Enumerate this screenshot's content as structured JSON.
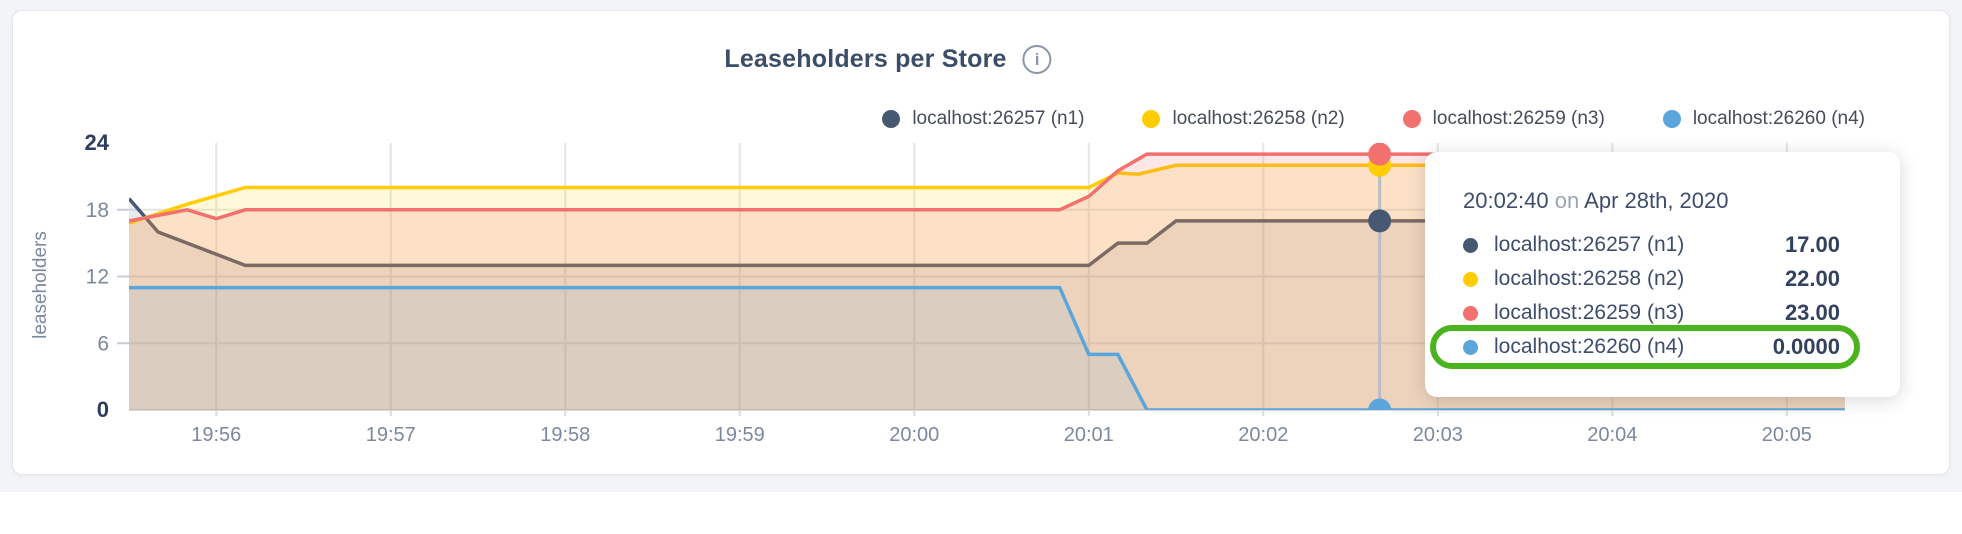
{
  "page": {
    "background": "#f3f4f8",
    "card_background": "#ffffff"
  },
  "header": {
    "title": "Leaseholders per Store",
    "info_icon": "i"
  },
  "legend": [
    {
      "label": "localhost:26257 (n1)",
      "color": "#475872"
    },
    {
      "label": "localhost:26258 (n2)",
      "color": "#ffcd02"
    },
    {
      "label": "localhost:26259 (n3)",
      "color": "#f2706e"
    },
    {
      "label": "localhost:26260 (n4)",
      "color": "#5aa6dc"
    }
  ],
  "chart_data": {
    "type": "area",
    "title": "Leaseholders per Store",
    "xlabel": "",
    "ylabel": "leaseholders",
    "ylim": [
      0,
      24
    ],
    "y_ticks": [
      0,
      6,
      12,
      18,
      24
    ],
    "y_ticks_bold": [
      0,
      24
    ],
    "grid": true,
    "legend_position": "top-right",
    "x_range": [
      "19:55:30",
      "20:05:20"
    ],
    "x_ticks": [
      "19:56",
      "19:57",
      "19:58",
      "19:59",
      "20:00",
      "20:01",
      "20:02",
      "20:03",
      "20:04",
      "20:05"
    ],
    "series": [
      {
        "name": "localhost:26257 (n1)",
        "color": "#475872",
        "fill_opacity": 0.12,
        "points": [
          [
            "19:55:30",
            19
          ],
          [
            "19:55:40",
            16
          ],
          [
            "19:55:50",
            15
          ],
          [
            "19:56:00",
            14
          ],
          [
            "19:56:10",
            13
          ],
          [
            "20:01:00",
            13
          ],
          [
            "20:01:10",
            15
          ],
          [
            "20:01:20",
            15
          ],
          [
            "20:01:30",
            17
          ],
          [
            "20:05:20",
            17
          ]
        ]
      },
      {
        "name": "localhost:26258 (n2)",
        "color": "#ffcd02",
        "fill_opacity": 0.15,
        "points": [
          [
            "19:55:30",
            16.8
          ],
          [
            "19:55:50",
            18.5
          ],
          [
            "19:56:10",
            20
          ],
          [
            "20:01:00",
            20
          ],
          [
            "20:01:10",
            21.3
          ],
          [
            "20:01:17",
            21.2
          ],
          [
            "20:01:30",
            22
          ],
          [
            "20:05:20",
            22
          ]
        ]
      },
      {
        "name": "localhost:26259 (n3)",
        "color": "#f2706e",
        "fill_opacity": 0.17,
        "points": [
          [
            "19:55:30",
            17
          ],
          [
            "19:55:50",
            18
          ],
          [
            "19:56:00",
            17.2
          ],
          [
            "19:56:10",
            18
          ],
          [
            "20:00:50",
            18
          ],
          [
            "20:01:00",
            19.2
          ],
          [
            "20:01:10",
            21.5
          ],
          [
            "20:01:20",
            23
          ],
          [
            "20:05:20",
            23
          ]
        ]
      },
      {
        "name": "localhost:26260 (n4)",
        "color": "#5aa6dc",
        "fill_opacity": 0.12,
        "points": [
          [
            "19:55:30",
            11
          ],
          [
            "20:00:50",
            11
          ],
          [
            "20:01:00",
            5
          ],
          [
            "20:01:10",
            5
          ],
          [
            "20:01:20",
            0
          ],
          [
            "20:05:20",
            0
          ]
        ]
      }
    ],
    "hover": {
      "time": "20:02:40",
      "values": [
        17,
        22,
        23,
        0
      ]
    }
  },
  "tooltip": {
    "time": "20:02:40",
    "conjunction": "on",
    "date": "Apr 28th, 2020",
    "rows": [
      {
        "series": "localhost:26257 (n1)",
        "color": "#475872",
        "value": "17.00",
        "highlighted": false
      },
      {
        "series": "localhost:26258 (n2)",
        "color": "#ffcd02",
        "value": "22.00",
        "highlighted": false
      },
      {
        "series": "localhost:26259 (n3)",
        "color": "#f2706e",
        "value": "23.00",
        "highlighted": false
      },
      {
        "series": "localhost:26260 (n4)",
        "color": "#5aa6dc",
        "value": "0.0000",
        "highlighted": true
      }
    ],
    "highlight_color": "#4bb31e"
  },
  "style": {
    "grid_color": "#e4e5e9",
    "axis_color": "#d9dadd",
    "hover_line_color": "#b9bdc5",
    "tick_color": "#7c88a0",
    "tick_bold_color": "#2c3c5c"
  }
}
